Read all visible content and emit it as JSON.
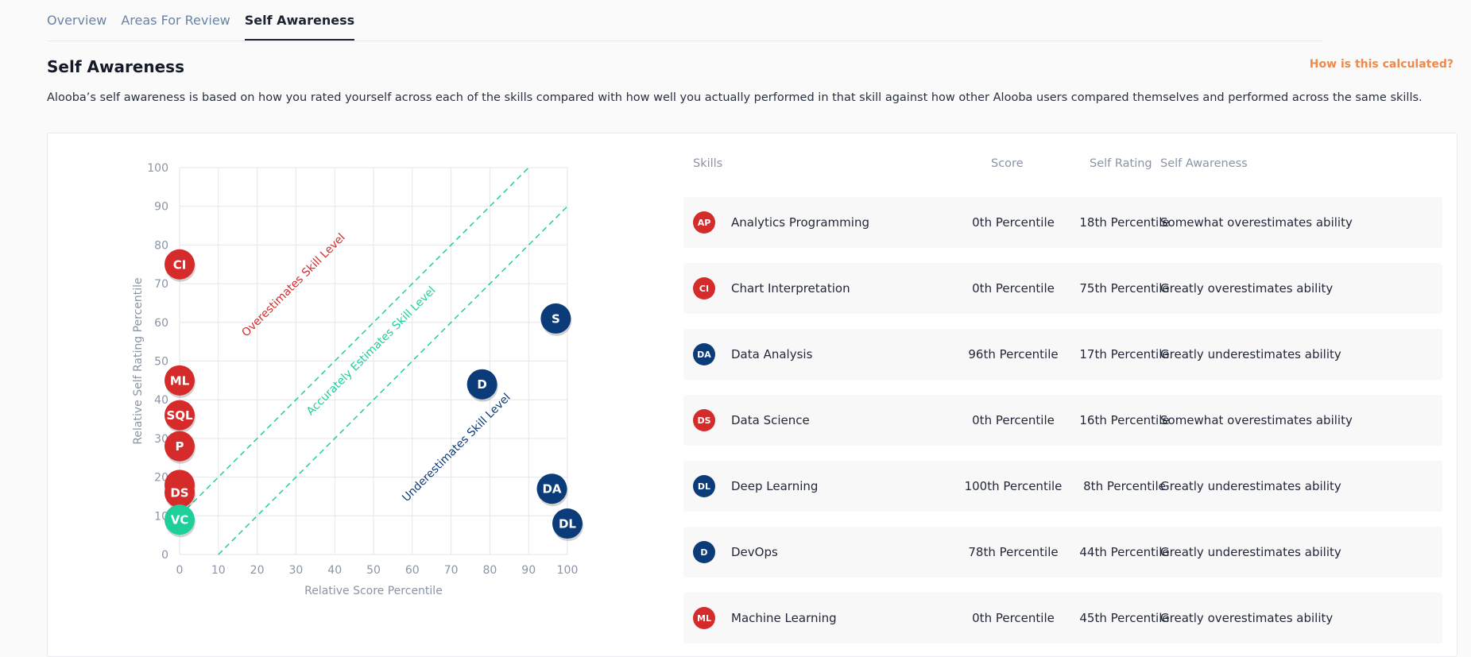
{
  "tabs": [
    {
      "label": "Overview"
    },
    {
      "label": "Areas For Review"
    },
    {
      "label": "Self Awareness"
    }
  ],
  "page": {
    "title": "Self Awareness",
    "help_link": "How is this calculated?",
    "description": "Alooba’s self awareness is based on how you rated yourself across each of the skills compared with how well you actually performed in that skill against how other Alooba users compared themselves and performed across the same skills."
  },
  "colors": {
    "over": "#d62b2b",
    "accurate": "#1fcf9a",
    "under": "#0b3b79"
  },
  "chart_data": {
    "type": "scatter",
    "xlabel": "Relative Score Percentile",
    "ylabel": "Relative Self Rating Percentile",
    "xlim": [
      0,
      100
    ],
    "ylim": [
      0,
      100
    ],
    "xticks": [
      "0",
      "10",
      "20",
      "30",
      "40",
      "50",
      "60",
      "70",
      "80",
      "90",
      "100"
    ],
    "yticks": [
      "0",
      "10",
      "20",
      "30",
      "40",
      "50",
      "60",
      "70",
      "80",
      "90",
      "100"
    ],
    "grid": true,
    "annotations": {
      "over": "Overestimates Skill Level",
      "accurate": "Accurately Estimates Skill Level",
      "under": "Underestimates Skill Level"
    },
    "points": [
      {
        "label": "CI",
        "x": 0,
        "y": 75,
        "group": "over"
      },
      {
        "label": "S",
        "x": 97,
        "y": 61,
        "group": "under"
      },
      {
        "label": "ML",
        "x": 0,
        "y": 45,
        "group": "over"
      },
      {
        "label": "D",
        "x": 78,
        "y": 44,
        "group": "under"
      },
      {
        "label": "SQL",
        "x": 0,
        "y": 36,
        "group": "over"
      },
      {
        "label": "P",
        "x": 0,
        "y": 28,
        "group": "over"
      },
      {
        "label": "",
        "x": 0,
        "y": 18,
        "group": "over"
      },
      {
        "label": "DS",
        "x": 0,
        "y": 16,
        "group": "over"
      },
      {
        "label": "DA",
        "x": 96,
        "y": 17,
        "group": "under"
      },
      {
        "label": "VC",
        "x": 0,
        "y": 9,
        "group": "accurate"
      },
      {
        "label": "DL",
        "x": 100,
        "y": 8,
        "group": "under"
      }
    ]
  },
  "table": {
    "headers": {
      "skills": "Skills",
      "score": "Score",
      "rating": "Self Rating",
      "awareness": "Self Awareness"
    },
    "rows": [
      {
        "badge": "AP",
        "group": "over",
        "skill": "Analytics Programming",
        "score": "0th Percentile",
        "rating": "18th Percentile",
        "awareness": "Somewhat overestimates ability"
      },
      {
        "badge": "CI",
        "group": "over",
        "skill": "Chart Interpretation",
        "score": "0th Percentile",
        "rating": "75th Percentile",
        "awareness": "Greatly overestimates ability"
      },
      {
        "badge": "DA",
        "group": "under",
        "skill": "Data Analysis",
        "score": "96th Percentile",
        "rating": "17th Percentile",
        "awareness": "Greatly underestimates ability"
      },
      {
        "badge": "DS",
        "group": "over",
        "skill": "Data Science",
        "score": "0th Percentile",
        "rating": "16th Percentile",
        "awareness": "Somewhat overestimates ability"
      },
      {
        "badge": "DL",
        "group": "under",
        "skill": "Deep Learning",
        "score": "100th Percentile",
        "rating": "8th Percentile",
        "awareness": "Greatly underestimates ability"
      },
      {
        "badge": "D",
        "group": "under",
        "skill": "DevOps",
        "score": "78th Percentile",
        "rating": "44th Percentile",
        "awareness": "Greatly underestimates ability"
      },
      {
        "badge": "ML",
        "group": "over",
        "skill": "Machine Learning",
        "score": "0th Percentile",
        "rating": "45th Percentile",
        "awareness": "Greatly overestimates ability"
      }
    ]
  }
}
